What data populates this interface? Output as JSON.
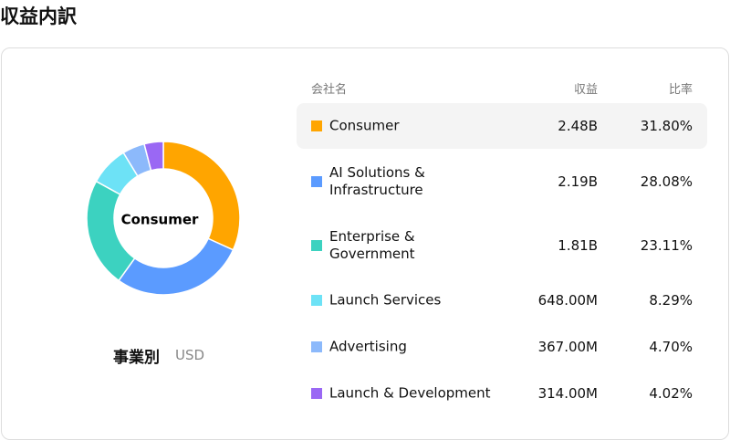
{
  "title": "収益内訳",
  "chart_data": {
    "type": "donut",
    "subtitle": "事業別",
    "unit": "USD",
    "categories": [
      "Consumer",
      "AI Solutions &\nInfrastructure",
      "Enterprise &\nGovernment",
      "Launch Services",
      "Advertising",
      "Launch & Development"
    ],
    "values": [
      31.8,
      28.08,
      23.11,
      8.29,
      4.7,
      4.02
    ],
    "value_labels": [
      "31.80%",
      "28.08%",
      "23.11%",
      "8.29%",
      "4.70%",
      "4.02%"
    ],
    "colors": [
      "#ffa500",
      "#5b9bff",
      "#3cd2c0",
      "#6de2f6",
      "#8cb9fb",
      "#9a68f4"
    ]
  },
  "table": {
    "headers": [
      "会社名",
      "収益",
      "比率"
    ],
    "revenue": [
      "2.48B",
      "2.19B",
      "1.81B",
      "648.00M",
      "367.00M",
      "314.00M"
    ]
  }
}
